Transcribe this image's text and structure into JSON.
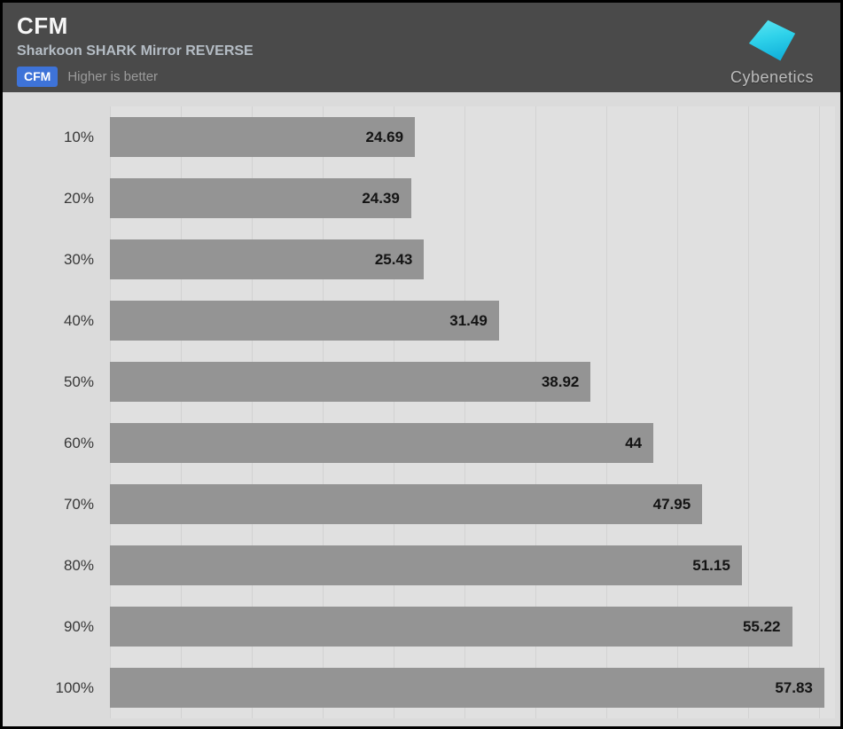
{
  "header": {
    "title": "CFM",
    "subtitle": "Sharkoon SHARK Mirror REVERSE",
    "badge_label": "CFM",
    "badge_color": "#3e73d8",
    "note": "Higher is better"
  },
  "logo": {
    "text": "Cybenetics",
    "icon": "cyan-parallelogram",
    "icon_color_top": "#5fe5f2",
    "icon_color_bottom": "#14b4dc"
  },
  "chart_data": {
    "type": "bar",
    "orientation": "horizontal",
    "title": "CFM",
    "subtitle": "Sharkoon SHARK Mirror REVERSE",
    "annotation": "Higher is better",
    "categories": [
      "10%",
      "20%",
      "30%",
      "40%",
      "50%",
      "60%",
      "70%",
      "80%",
      "90%",
      "100%"
    ],
    "values": [
      24.69,
      24.39,
      25.43,
      31.49,
      38.92,
      44,
      47.95,
      51.15,
      55.22,
      57.83
    ],
    "value_labels": [
      "24.69",
      "24.39",
      "25.43",
      "31.49",
      "38.92",
      "44",
      "47.95",
      "51.15",
      "55.22",
      "57.83"
    ],
    "xlabel": "",
    "ylabel": "",
    "xlim": [
      0,
      58.7
    ],
    "grid": "vertical",
    "gridline_spacing_px": 80,
    "legend_position": "none",
    "bar_color": "#949494",
    "plot_background": "#e0e0e0",
    "chart_background": "#dbdbdb",
    "header_background": "#4a4a4a"
  }
}
